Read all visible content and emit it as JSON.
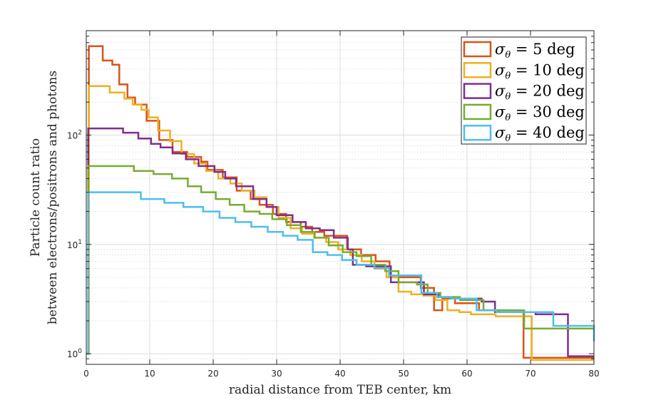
{
  "chart_data": {
    "type": "line",
    "step": true,
    "title": "",
    "xlabel": "radial distance from TEB center, km",
    "ylabel_lines": [
      "Particle count ratio",
      "between electrons/positrons and photons"
    ],
    "xlim": [
      0,
      80
    ],
    "ylim": [
      0.8,
      900
    ],
    "yscale": "log",
    "grid": true,
    "minor_grid": true,
    "legend_position": "top-right",
    "xticks": [
      0,
      10,
      20,
      30,
      40,
      50,
      60,
      70,
      80
    ],
    "yticks": [
      {
        "value": 1,
        "base": "10",
        "exp": "0"
      },
      {
        "value": 10,
        "base": "10",
        "exp": "1"
      },
      {
        "value": 100,
        "base": "10",
        "exp": "2"
      }
    ],
    "series": [
      {
        "name": "σθ = 5 deg",
        "legend_prefix": "σ",
        "legend_sub": "θ",
        "legend_rest": " = 5 deg",
        "color": "#D95319",
        "x": [
          0,
          0.4,
          2.6,
          4.1,
          5.2,
          6.5,
          7.7,
          9.5,
          11.5,
          13.6,
          15.9,
          18.1,
          19.1,
          21.5,
          23.7,
          25.9,
          27.3,
          29.4,
          31.5,
          33.8,
          35.6,
          37.5,
          41.1,
          43.3,
          45.6,
          47.8,
          52.7,
          54.8,
          56.1,
          58.1,
          61.9,
          65.1,
          68.9,
          80
        ],
        "y": [
          1,
          650,
          480,
          440,
          290,
          220,
          190,
          135,
          90,
          70,
          63,
          57,
          48,
          41,
          31,
          26,
          23,
          19,
          16,
          14.5,
          13,
          12,
          9,
          8,
          7,
          5,
          4,
          2.5,
          3.2,
          2.9,
          2.5,
          2.4,
          0.92,
          0.92
        ]
      },
      {
        "name": "σθ = 10 deg",
        "legend_prefix": "σ",
        "legend_sub": "θ",
        "legend_rest": " = 10 deg",
        "color": "#EDB120",
        "x": [
          0,
          0.4,
          3.7,
          6.0,
          7.3,
          8.7,
          9.8,
          11.3,
          13.2,
          15.0,
          17.0,
          18.9,
          20.8,
          22.7,
          24.5,
          26.5,
          28.4,
          30.3,
          32.2,
          34.0,
          35.9,
          37.8,
          39.7,
          41.6,
          43.4,
          45.4,
          47.3,
          49.2,
          51.2,
          53.1,
          55.0,
          56.9,
          58.8,
          60.6,
          62.5,
          64.5,
          66.4,
          68.3,
          70.2,
          80
        ],
        "y": [
          1,
          280,
          245,
          215,
          190,
          170,
          145,
          110,
          88,
          67,
          55,
          47,
          40,
          36,
          31,
          27,
          22,
          17.5,
          14,
          12.5,
          11.5,
          10.5,
          9,
          8,
          7,
          6,
          5,
          3.7,
          3.5,
          3.4,
          3.1,
          2.5,
          2.4,
          2.3,
          2.3,
          2.2,
          2.2,
          2.2,
          0.88,
          0.88
        ]
      },
      {
        "name": "σθ = 20 deg",
        "legend_prefix": "σ",
        "legend_sub": "θ",
        "legend_rest": " = 20 deg",
        "color": "#7E2F8E",
        "x": [
          0,
          0.3,
          5.8,
          8.2,
          10.2,
          11.7,
          13.6,
          15.7,
          17.7,
          20.2,
          21.9,
          23.6,
          26.3,
          28.4,
          30.0,
          32.5,
          34.6,
          36.8,
          39.0,
          41.2,
          42.0,
          44.1,
          46.9,
          48.0,
          52.0,
          53.2,
          55.5,
          58.1,
          62.3,
          64.4,
          70.8,
          75.9,
          80
        ],
        "y": [
          1,
          115,
          105,
          93,
          83,
          77,
          68,
          60,
          52,
          46,
          40,
          34,
          26,
          22,
          18.5,
          16,
          14,
          13.5,
          11.5,
          9,
          6.5,
          6.3,
          6.3,
          4.5,
          4.5,
          3.5,
          3.3,
          3.2,
          3.0,
          2.4,
          2.3,
          0.95,
          0.95
        ]
      },
      {
        "name": "σθ = 30 deg",
        "legend_prefix": "σ",
        "legend_sub": "θ",
        "legend_rest": " = 30 deg",
        "color": "#77AC30",
        "x": [
          0,
          0.3,
          7.5,
          10.6,
          13.5,
          16.0,
          18.1,
          20.4,
          22.6,
          24.9,
          27.3,
          29.3,
          31.6,
          33.8,
          36.0,
          38.2,
          40.4,
          42.6,
          44.9,
          47.1,
          49.2,
          52.1,
          53.8,
          55.8,
          58.9,
          62.6,
          66.4,
          68.3,
          69.0,
          80
        ],
        "y": [
          1,
          52,
          47,
          44,
          40,
          34,
          30,
          26,
          23,
          20,
          19,
          17,
          15,
          13,
          11.5,
          9.8,
          8.5,
          7.8,
          6.5,
          5.7,
          4.5,
          4.3,
          3.6,
          3.3,
          3.1,
          2.5,
          2.5,
          2.5,
          1.7,
          1.7
        ]
      },
      {
        "name": "σθ = 40 deg",
        "legend_prefix": "σ",
        "legend_sub": "θ",
        "legend_rest": " = 40 deg",
        "color": "#4DBEEE",
        "x": [
          0,
          0.3,
          8.6,
          12.3,
          15.3,
          18.4,
          21.0,
          23.5,
          26.0,
          28.6,
          31.0,
          33.3,
          35.7,
          38.0,
          40.3,
          42.6,
          45.4,
          47.7,
          52.8,
          55.3,
          57.5,
          61.5,
          64.6,
          73.6,
          80
        ],
        "y": [
          1,
          30,
          26,
          24,
          22,
          20,
          17.5,
          16,
          14.5,
          13,
          12,
          11,
          8.5,
          8,
          7.2,
          6.5,
          6.1,
          5.2,
          3.6,
          3.3,
          3.2,
          2.5,
          2.4,
          1.8,
          1.3
        ]
      }
    ]
  }
}
